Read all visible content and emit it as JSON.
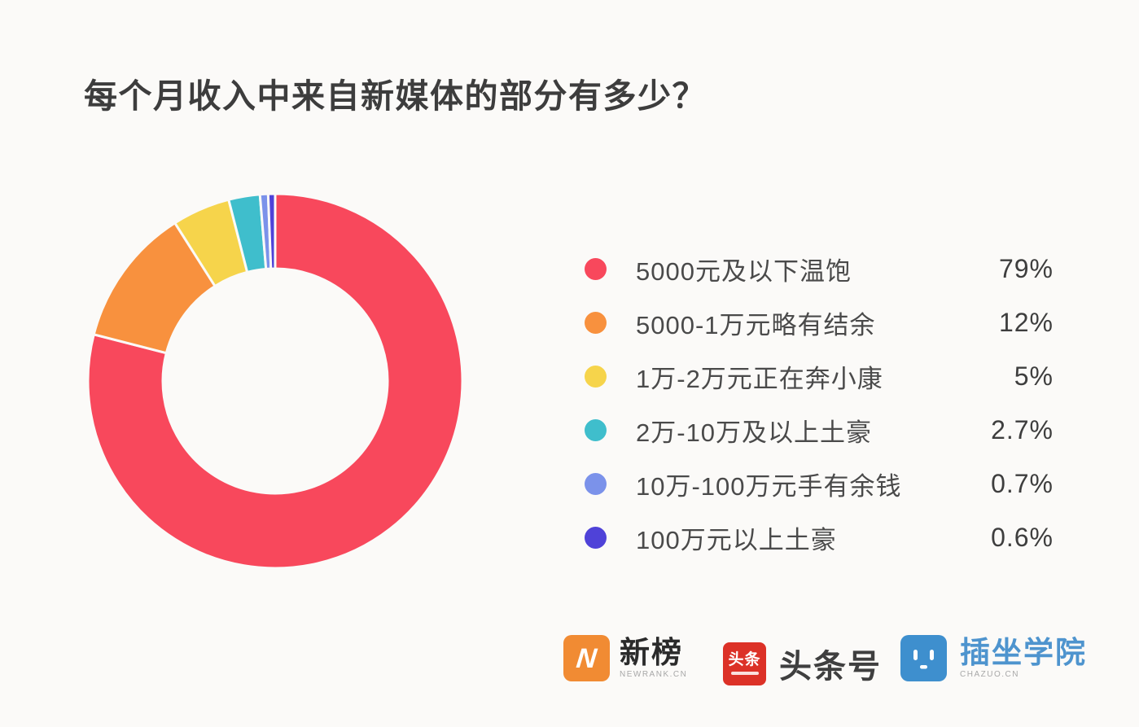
{
  "page": {
    "background": "#FBFAF8"
  },
  "title": "每个月收入中来自新媒体的部分有多少？",
  "chart_data": {
    "type": "pie",
    "subtype": "donut",
    "title": "每个月收入中来自新媒体的部分有多少？",
    "categories": [
      "5000元及以下温饱",
      "5000-1万元略有结余",
      "1万-2万元正在奔小康",
      "2万-10万及以上土豪",
      "10万-100万元手有余钱",
      "100万元以上土豪"
    ],
    "values": [
      79,
      12,
      5,
      2.7,
      0.7,
      0.6
    ],
    "value_labels": [
      "79%",
      "12%",
      "5%",
      "2.7%",
      "0.7%",
      "0.6%"
    ],
    "colors": [
      "#F8485C",
      "#F8913E",
      "#F6D44B",
      "#3FBECC",
      "#7B92EA",
      "#4F42D8"
    ],
    "start_angle_deg": -90,
    "direction": "clockwise",
    "inner_radius_ratio": 0.6,
    "gap_stroke_color": "#FBFAF8",
    "legend_position": "right"
  },
  "footer": {
    "brands": [
      {
        "name": "newrank",
        "icon_letter": "N",
        "icon_color": "#F18B33",
        "text": "新榜",
        "text_color": "#2B2B2B",
        "subtext": "NEWRANK.CN"
      },
      {
        "name": "toutiao",
        "badge_text": "头条",
        "badge_color": "#DC3127",
        "text": "头条号",
        "text_color": "#3F3F3F"
      },
      {
        "name": "chazuo",
        "icon_color": "#3E8FCE",
        "text": "插坐学院",
        "text_color": "#4E94CE",
        "subtext": "CHAZUO.CN"
      }
    ]
  }
}
